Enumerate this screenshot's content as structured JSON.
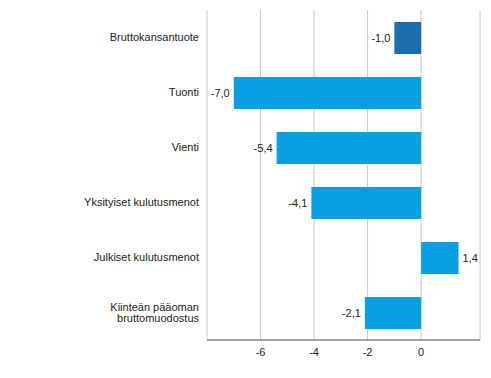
{
  "chart_data": {
    "type": "bar",
    "orientation": "horizontal",
    "categories": [
      "Bruttokansantuote",
      "Tuonti",
      "Vienti",
      "Yksityiset kulutusmenot",
      "Julkiset kulutusmenot",
      "Kiinteän pääoman bruttomuodostus"
    ],
    "values": [
      -1.0,
      -7.0,
      -5.4,
      -4.1,
      1.4,
      -2.1
    ],
    "value_labels": [
      "-1,0",
      "-7,0",
      "-5,4",
      "-4,1",
      "1,4",
      "-2,1"
    ],
    "colors": [
      "#1b6fae",
      "#0a9ee2",
      "#0a9ee2",
      "#0a9ee2",
      "#0a9ee2",
      "#0a9ee2"
    ],
    "xlim": [
      -8,
      2.2
    ],
    "xticks": [
      -6,
      -4,
      -2,
      0
    ],
    "grid": true,
    "data_labels": true
  }
}
